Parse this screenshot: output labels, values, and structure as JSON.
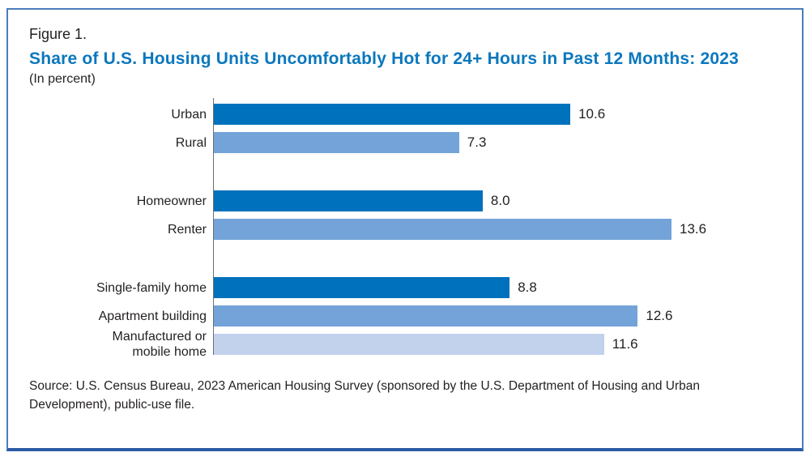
{
  "figure": {
    "label": "Figure 1.",
    "title": "Share of U.S. Housing Units Uncomfortably Hot for 24+ Hours in Past 12 Months: 2023",
    "subtitle": "(In percent)",
    "source": "Source: U.S. Census Bureau, 2023 American Housing Survey (sponsored by the U.S. Department of Housing and Urban Development), public-use file."
  },
  "colors": {
    "title_blue": "#0B77BD",
    "bar_dark": "#0071BC",
    "bar_medium": "#73A3D8",
    "bar_light": "#C2D1EC",
    "axis_gray": "#6D6E71",
    "border_side": "#4D7CB9",
    "border_bottom": "#2B5CA5",
    "text": "#231F20"
  },
  "chart_data": {
    "type": "bar",
    "orientation": "horizontal",
    "title": "Share of U.S. Housing Units Uncomfortably Hot for 24+ Hours in Past 12 Months: 2023",
    "subtitle": "(In percent)",
    "unit": "percent",
    "categories": [
      "Urban",
      "Rural",
      "Homeowner",
      "Renter",
      "Single-family home",
      "Apartment building",
      "Manufactured or mobile home"
    ],
    "values": [
      10.6,
      7.3,
      8.0,
      13.6,
      8.8,
      12.6,
      11.6
    ],
    "value_labels": [
      "10.6",
      "7.3",
      "8.0",
      "13.6",
      "8.8",
      "12.6",
      "11.6"
    ],
    "bar_colors": [
      "dark",
      "medium",
      "dark",
      "medium",
      "dark",
      "medium",
      "light"
    ],
    "group_of": [
      0,
      0,
      1,
      1,
      2,
      2,
      2
    ],
    "xmax": 13.6,
    "xlabel": "",
    "ylabel": "",
    "grid": false,
    "legend": false,
    "data_labels": true
  }
}
